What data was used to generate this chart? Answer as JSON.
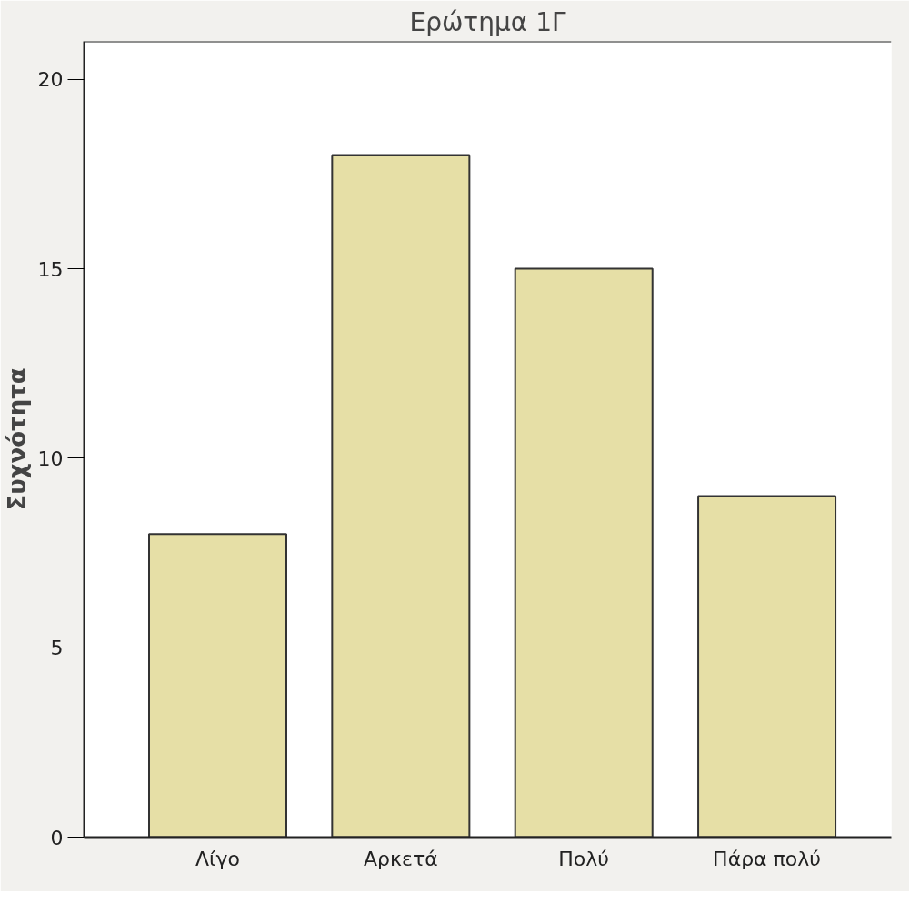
{
  "chart_data": {
    "type": "bar",
    "title": "Ερώτημα 1Γ",
    "ylabel": "Συχνότητα",
    "categories": [
      "Λίγο",
      "Αρκετά",
      "Πολύ",
      "Πάρα πολύ"
    ],
    "values": [
      8,
      18,
      15,
      9
    ],
    "color": "#e6dfa6",
    "ylim": [
      0,
      21
    ],
    "yticks": [
      0,
      5,
      10,
      15,
      20
    ],
    "grid": false
  }
}
